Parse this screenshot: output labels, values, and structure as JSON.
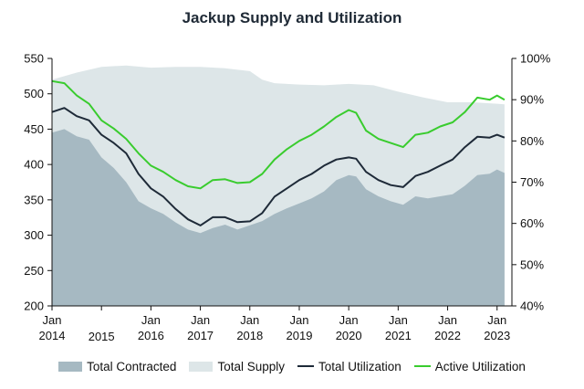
{
  "chart_data": {
    "type": "area",
    "title": "Jackup Supply and Utilization",
    "x_tick_labels": [
      [
        "Jan",
        "2014"
      ],
      [
        "2015"
      ],
      [
        "Jan",
        "2016"
      ],
      [
        "Jan",
        "2017"
      ],
      [
        "Jan",
        "2018"
      ],
      [
        "Jan",
        "2019"
      ],
      [
        "Jan",
        "2020"
      ],
      [
        "Jan",
        "2021"
      ],
      [
        "Jan",
        "2022"
      ],
      [
        "Jan",
        "2023"
      ]
    ],
    "x_ticks": [
      2014,
      2015,
      2016,
      2017,
      2018,
      2019,
      2020,
      2021,
      2022,
      2023
    ],
    "xlim": [
      2014,
      2023.3
    ],
    "y_left": {
      "ylim": [
        200,
        550
      ],
      "ticks": [
        200,
        250,
        300,
        350,
        400,
        450,
        500,
        550
      ]
    },
    "y_right": {
      "ylim": [
        0.4,
        1.0
      ],
      "ticks": [
        "40%",
        "50%",
        "60%",
        "70%",
        "80%",
        "90%",
        "100%"
      ],
      "tick_values": [
        0.4,
        0.5,
        0.6,
        0.7,
        0.8,
        0.9,
        1.0
      ]
    },
    "series": [
      {
        "name": "Total Supply",
        "axis": "left",
        "style": "area",
        "color": "#dde6e8",
        "points": [
          [
            2014.0,
            520
          ],
          [
            2014.5,
            530
          ],
          [
            2015.0,
            538
          ],
          [
            2015.5,
            540
          ],
          [
            2016.0,
            537
          ],
          [
            2016.5,
            538
          ],
          [
            2017.0,
            538
          ],
          [
            2017.5,
            536
          ],
          [
            2018.0,
            532
          ],
          [
            2018.25,
            520
          ],
          [
            2018.5,
            515
          ],
          [
            2019.0,
            513
          ],
          [
            2019.5,
            512
          ],
          [
            2020.0,
            514
          ],
          [
            2020.5,
            512
          ],
          [
            2021.0,
            503
          ],
          [
            2021.5,
            495
          ],
          [
            2022.0,
            488
          ],
          [
            2022.5,
            488
          ],
          [
            2023.0,
            486
          ],
          [
            2023.15,
            485
          ]
        ]
      },
      {
        "name": "Total Contracted",
        "axis": "left",
        "style": "area",
        "color": "#a6b9c2",
        "points": [
          [
            2014.0,
            445
          ],
          [
            2014.25,
            450
          ],
          [
            2014.5,
            440
          ],
          [
            2014.75,
            435
          ],
          [
            2015.0,
            410
          ],
          [
            2015.25,
            395
          ],
          [
            2015.5,
            375
          ],
          [
            2015.75,
            348
          ],
          [
            2016.0,
            338
          ],
          [
            2016.25,
            330
          ],
          [
            2016.5,
            318
          ],
          [
            2016.75,
            308
          ],
          [
            2017.0,
            303
          ],
          [
            2017.25,
            310
          ],
          [
            2017.5,
            315
          ],
          [
            2017.75,
            308
          ],
          [
            2018.0,
            314
          ],
          [
            2018.25,
            320
          ],
          [
            2018.5,
            330
          ],
          [
            2018.75,
            338
          ],
          [
            2019.0,
            345
          ],
          [
            2019.25,
            352
          ],
          [
            2019.5,
            362
          ],
          [
            2019.75,
            378
          ],
          [
            2020.0,
            385
          ],
          [
            2020.15,
            383
          ],
          [
            2020.35,
            365
          ],
          [
            2020.6,
            355
          ],
          [
            2020.85,
            348
          ],
          [
            2021.1,
            343
          ],
          [
            2021.35,
            355
          ],
          [
            2021.6,
            352
          ],
          [
            2021.85,
            355
          ],
          [
            2022.1,
            358
          ],
          [
            2022.35,
            370
          ],
          [
            2022.6,
            385
          ],
          [
            2022.85,
            387
          ],
          [
            2023.0,
            393
          ],
          [
            2023.15,
            388
          ]
        ]
      },
      {
        "name": "Total Utilization",
        "axis": "right",
        "style": "line",
        "color": "#1e2a38",
        "points": [
          [
            2014.0,
            0.87
          ],
          [
            2014.25,
            0.88
          ],
          [
            2014.5,
            0.86
          ],
          [
            2014.75,
            0.85
          ],
          [
            2015.0,
            0.815
          ],
          [
            2015.25,
            0.795
          ],
          [
            2015.5,
            0.77
          ],
          [
            2015.75,
            0.72
          ],
          [
            2016.0,
            0.685
          ],
          [
            2016.25,
            0.665
          ],
          [
            2016.5,
            0.635
          ],
          [
            2016.75,
            0.61
          ],
          [
            2017.0,
            0.595
          ],
          [
            2017.25,
            0.615
          ],
          [
            2017.5,
            0.615
          ],
          [
            2017.75,
            0.603
          ],
          [
            2018.0,
            0.605
          ],
          [
            2018.25,
            0.625
          ],
          [
            2018.5,
            0.665
          ],
          [
            2018.75,
            0.685
          ],
          [
            2019.0,
            0.705
          ],
          [
            2019.25,
            0.72
          ],
          [
            2019.5,
            0.74
          ],
          [
            2019.75,
            0.755
          ],
          [
            2020.0,
            0.76
          ],
          [
            2020.15,
            0.757
          ],
          [
            2020.35,
            0.725
          ],
          [
            2020.6,
            0.705
          ],
          [
            2020.85,
            0.693
          ],
          [
            2021.1,
            0.688
          ],
          [
            2021.35,
            0.715
          ],
          [
            2021.6,
            0.725
          ],
          [
            2021.85,
            0.74
          ],
          [
            2022.1,
            0.755
          ],
          [
            2022.35,
            0.785
          ],
          [
            2022.6,
            0.81
          ],
          [
            2022.85,
            0.808
          ],
          [
            2023.0,
            0.815
          ],
          [
            2023.15,
            0.808
          ]
        ]
      },
      {
        "name": "Active Utilization",
        "axis": "right",
        "style": "line",
        "color": "#39cc2e",
        "points": [
          [
            2014.0,
            0.945
          ],
          [
            2014.25,
            0.94
          ],
          [
            2014.5,
            0.91
          ],
          [
            2014.75,
            0.89
          ],
          [
            2015.0,
            0.85
          ],
          [
            2015.25,
            0.83
          ],
          [
            2015.5,
            0.805
          ],
          [
            2015.75,
            0.77
          ],
          [
            2016.0,
            0.74
          ],
          [
            2016.25,
            0.725
          ],
          [
            2016.5,
            0.705
          ],
          [
            2016.75,
            0.69
          ],
          [
            2017.0,
            0.685
          ],
          [
            2017.25,
            0.705
          ],
          [
            2017.5,
            0.707
          ],
          [
            2017.75,
            0.698
          ],
          [
            2018.0,
            0.7
          ],
          [
            2018.25,
            0.72
          ],
          [
            2018.5,
            0.755
          ],
          [
            2018.75,
            0.78
          ],
          [
            2019.0,
            0.8
          ],
          [
            2019.25,
            0.815
          ],
          [
            2019.5,
            0.835
          ],
          [
            2019.75,
            0.858
          ],
          [
            2020.0,
            0.875
          ],
          [
            2020.15,
            0.868
          ],
          [
            2020.35,
            0.825
          ],
          [
            2020.6,
            0.805
          ],
          [
            2020.85,
            0.795
          ],
          [
            2021.1,
            0.785
          ],
          [
            2021.35,
            0.815
          ],
          [
            2021.6,
            0.82
          ],
          [
            2021.85,
            0.835
          ],
          [
            2022.1,
            0.845
          ],
          [
            2022.35,
            0.87
          ],
          [
            2022.6,
            0.905
          ],
          [
            2022.85,
            0.9
          ],
          [
            2023.0,
            0.91
          ],
          [
            2023.15,
            0.9
          ]
        ]
      }
    ]
  },
  "legend": {
    "total_contracted": "Total Contracted",
    "total_supply": "Total Supply",
    "total_utilization": "Total Utilization",
    "active_utilization": "Active Utilization"
  },
  "colors": {
    "total_supply": "#dde6e8",
    "total_contracted": "#a6b9c2",
    "total_utilization": "#1e2a38",
    "active_utilization": "#39cc2e",
    "axis": "#111111"
  }
}
